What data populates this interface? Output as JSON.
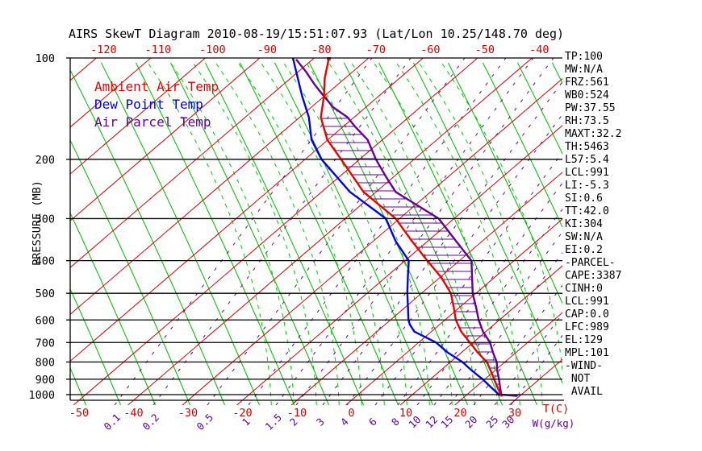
{
  "title": "AIRS SkewT Diagram 2010-08-19/15:51:07.93 (Lat/Lon 10.25/148.70 deg)",
  "colors": {
    "isotherm": "#dd0000",
    "dry_adiabat": "#00bf00",
    "moist_adiabat": "#00cc00",
    "mixing_ratio": "#660099",
    "pressure_line": "#000000",
    "ambient": "#ee0000",
    "dewpoint": "#0000ee",
    "parcel": "#660099",
    "hatch": "#660099",
    "axis_text_red": "#dd0000",
    "axis_text_purple": "#660099",
    "axis_text_black": "#000000"
  },
  "legend": [
    {
      "label": "Ambient Air Temp",
      "color": "#ee0000"
    },
    {
      "label": "Dew Point Temp",
      "color": "#0000ee"
    },
    {
      "label": "Air Parcel Temp",
      "color": "#660099"
    }
  ],
  "side_panel": {
    "items": [
      "TP:100",
      "MW:N/A",
      "FRZ:561",
      "WB0:524",
      "PW:37.55",
      "RH:73.5",
      "MAXT:32.2",
      "TH:5463",
      "L57:5.4",
      "LCL:991",
      "LI:-5.3",
      "SI:0.6",
      "TT:42.0",
      "KI:304",
      "SW:N/A",
      "EI:0.2",
      "-PARCEL-",
      "CAPE:3387",
      "CINH:0",
      "LCL:991",
      "CAP:0.0",
      "LFC:989",
      "EL:129",
      "MPL:101",
      "-WIND-",
      " NOT",
      " AVAIL"
    ]
  },
  "chart_data": {
    "type": "line",
    "title": "AIRS SkewT Diagram 2010-08-19/15:51:07.93 (Lat/Lon 10.25/148.70 deg)",
    "xlabel": "T(C)",
    "ylabel": "PRESSURE (MB)",
    "x2label": "W(g/kg)",
    "x_axis_type": "skewed temperature (deg C)",
    "y_axis_type": "log pressure (mb), inverted",
    "ylim": [
      100,
      1000
    ],
    "grid": true,
    "legend_position": "top-left inside plot",
    "layout": {
      "pressure_ticks": [
        100,
        200,
        300,
        400,
        500,
        600,
        700,
        800,
        900,
        1000
      ],
      "temp_ticks_top": [
        -120,
        -110,
        -100,
        -90,
        -80,
        -70,
        -60,
        -50,
        -40
      ],
      "temp_ticks_bottom": [
        -50,
        -40,
        -30,
        -20,
        -10,
        0,
        10,
        20,
        30
      ],
      "mixing_ratio_ticks": [
        0.1,
        0.2,
        0.5,
        1,
        1.5,
        2,
        3,
        4,
        6,
        8,
        10,
        12,
        15,
        20,
        25,
        30
      ],
      "mixing_ratio_tick_x": [
        142,
        190,
        257,
        308,
        342,
        367,
        400,
        430,
        465,
        493,
        517,
        538,
        557,
        587,
        613,
        633
      ]
    },
    "series": [
      {
        "name": "Ambient Air Temp",
        "color": "#ee0000",
        "units": [
          "mb",
          "C"
        ],
        "points": [
          [
            100,
            -77.3
          ],
          [
            115,
            -73.7
          ],
          [
            130,
            -70.0
          ],
          [
            150,
            -66.1
          ],
          [
            175,
            -60.1
          ],
          [
            200,
            -53.4
          ],
          [
            250,
            -42.3
          ],
          [
            300,
            -30.7
          ],
          [
            350,
            -22.9
          ],
          [
            400,
            -15.9
          ],
          [
            450,
            -9.6
          ],
          [
            500,
            -4.6
          ],
          [
            550,
            -1.1
          ],
          [
            600,
            2.0
          ],
          [
            650,
            5.5
          ],
          [
            700,
            9.4
          ],
          [
            750,
            13.0
          ],
          [
            800,
            16.7
          ],
          [
            850,
            19.3
          ],
          [
            900,
            21.7
          ],
          [
            950,
            24.0
          ],
          [
            1000,
            26.2
          ],
          [
            1008,
            26.9
          ]
        ]
      },
      {
        "name": "Dew Point Temp",
        "color": "#0000ee",
        "units": [
          "mb",
          "C"
        ],
        "points": [
          [
            100,
            -83.9
          ],
          [
            130,
            -74.0
          ],
          [
            150,
            -68.3
          ],
          [
            175,
            -63.0
          ],
          [
            200,
            -57.0
          ],
          [
            250,
            -44.8
          ],
          [
            300,
            -32.5
          ],
          [
            350,
            -25.9
          ],
          [
            400,
            -19.3
          ],
          [
            450,
            -15.8
          ],
          [
            500,
            -12.6
          ],
          [
            550,
            -9.5
          ],
          [
            600,
            -6.7
          ],
          [
            620,
            -5.4
          ],
          [
            650,
            -3.1
          ],
          [
            700,
            3.2
          ],
          [
            750,
            7.5
          ],
          [
            800,
            12.2
          ],
          [
            850,
            15.9
          ],
          [
            900,
            19.6
          ],
          [
            950,
            22.8
          ],
          [
            1000,
            25.9
          ],
          [
            1006,
            26.3
          ]
        ]
      },
      {
        "name": "Air Parcel Temp",
        "color": "#660099",
        "units": [
          "mb",
          "C"
        ],
        "points": [
          [
            101,
            -83.0
          ],
          [
            110,
            -78.5
          ],
          [
            120,
            -74.2
          ],
          [
            129,
            -70.4
          ],
          [
            140,
            -66.0
          ],
          [
            150,
            -61.2
          ],
          [
            160,
            -57.8
          ],
          [
            175,
            -52.7
          ],
          [
            200,
            -47.0
          ],
          [
            225,
            -41.5
          ],
          [
            250,
            -36.4
          ],
          [
            300,
            -22.8
          ],
          [
            350,
            -14.8
          ],
          [
            400,
            -7.8
          ],
          [
            450,
            -4.0
          ],
          [
            500,
            -0.6
          ],
          [
            550,
            3.0
          ],
          [
            600,
            6.2
          ],
          [
            650,
            9.5
          ],
          [
            700,
            13.1
          ],
          [
            750,
            15.8
          ],
          [
            800,
            18.5
          ],
          [
            850,
            20.5
          ],
          [
            900,
            22.6
          ],
          [
            950,
            24.5
          ],
          [
            1000,
            26.3
          ],
          [
            1009,
            29.5
          ]
        ]
      }
    ],
    "positive_area_hatch": {
      "between": [
        "Ambient Air Temp",
        "Air Parcel Temp"
      ],
      "from_mb": 990,
      "to_mb": 135
    }
  }
}
